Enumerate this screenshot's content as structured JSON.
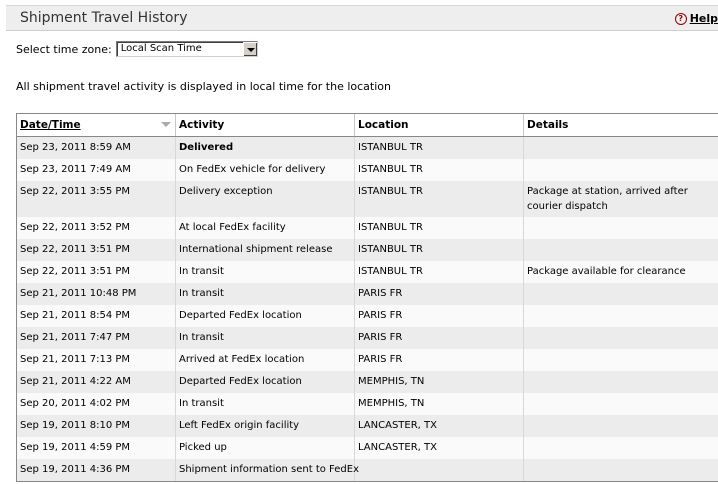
{
  "header": {
    "title": "Shipment Travel History",
    "help_label": "Help",
    "help_icon": "question-icon"
  },
  "timezone": {
    "label": "Select time zone:",
    "selected": "Local Scan Time"
  },
  "info_text": "All shipment travel activity is displayed in local time for the location",
  "table": {
    "columns": [
      "Date/Time",
      "Activity",
      "Location",
      "Details"
    ],
    "rows": [
      {
        "date": "Sep 23, 2011 8:59 AM",
        "activity": "Delivered",
        "location": "ISTANBUL TR",
        "details": ""
      },
      {
        "date": "Sep 23, 2011 7:49 AM",
        "activity": "On FedEx vehicle for delivery",
        "location": "ISTANBUL TR",
        "details": ""
      },
      {
        "date": "Sep 22, 2011 3:55 PM",
        "activity": "Delivery exception",
        "location": "ISTANBUL TR",
        "details": "Package at station, arrived after courier dispatch"
      },
      {
        "date": "Sep 22, 2011 3:52 PM",
        "activity": "At local FedEx facility",
        "location": "ISTANBUL TR",
        "details": ""
      },
      {
        "date": "Sep 22, 2011 3:51 PM",
        "activity": "International shipment release",
        "location": "ISTANBUL TR",
        "details": ""
      },
      {
        "date": "Sep 22, 2011 3:51 PM",
        "activity": "In transit",
        "location": "ISTANBUL TR",
        "details": "Package available for clearance"
      },
      {
        "date": "Sep 21, 2011 10:48 PM",
        "activity": "In transit",
        "location": "PARIS FR",
        "details": ""
      },
      {
        "date": "Sep 21, 2011 8:54 PM",
        "activity": "Departed FedEx location",
        "location": "PARIS FR",
        "details": ""
      },
      {
        "date": "Sep 21, 2011 7:47 PM",
        "activity": "In transit",
        "location": "PARIS FR",
        "details": ""
      },
      {
        "date": "Sep 21, 2011 7:13 PM",
        "activity": "Arrived at FedEx location",
        "location": "PARIS FR",
        "details": ""
      },
      {
        "date": "Sep 21, 2011 4:22 AM",
        "activity": "Departed FedEx location",
        "location": "MEMPHIS, TN",
        "details": ""
      },
      {
        "date": "Sep 20, 2011 4:02 PM",
        "activity": "In transit",
        "location": "MEMPHIS, TN",
        "details": ""
      },
      {
        "date": "Sep 19, 2011 8:10 PM",
        "activity": "Left FedEx origin facility",
        "location": "LANCASTER, TX",
        "details": ""
      },
      {
        "date": "Sep 19, 2011 4:59 PM",
        "activity": "Picked up",
        "location": "LANCASTER, TX",
        "details": ""
      },
      {
        "date": "Sep 19, 2011 4:36 PM",
        "activity": "Shipment information sent to FedEx",
        "location": "",
        "details": ""
      }
    ]
  }
}
